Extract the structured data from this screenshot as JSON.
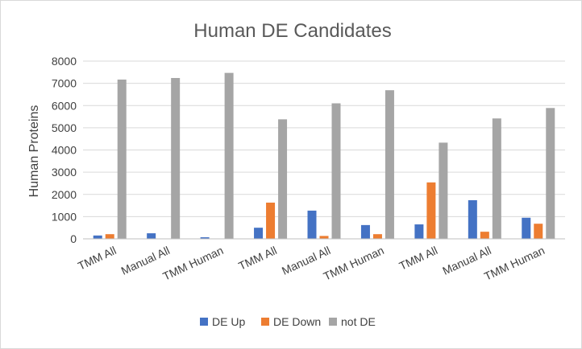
{
  "chart_data": {
    "type": "bar",
    "title": "Human DE Candidates",
    "xlabel": "",
    "ylabel": "Human Proteins",
    "ylim": [
      0,
      8000
    ],
    "yticks": [
      0,
      1000,
      2000,
      3000,
      4000,
      5000,
      6000,
      7000,
      8000
    ],
    "grid": true,
    "legend_position": "bottom",
    "categories": [
      "TMM All",
      "Manual All",
      "TMM Human",
      "TMM All",
      "Manual All",
      "TMM Human",
      "TMM All",
      "Manual All",
      "TMM Human"
    ],
    "series": [
      {
        "name": "DE Up",
        "color": "#4472C4",
        "values": [
          150,
          250,
          70,
          500,
          1270,
          620,
          650,
          1740,
          950
        ]
      },
      {
        "name": "DE Down",
        "color": "#ED7D31",
        "values": [
          210,
          0,
          0,
          1630,
          130,
          210,
          2540,
          320,
          680
        ]
      },
      {
        "name": "not DE",
        "color": "#A5A5A5",
        "values": [
          7170,
          7240,
          7470,
          5380,
          6100,
          6690,
          4330,
          5420,
          5890
        ]
      }
    ]
  }
}
